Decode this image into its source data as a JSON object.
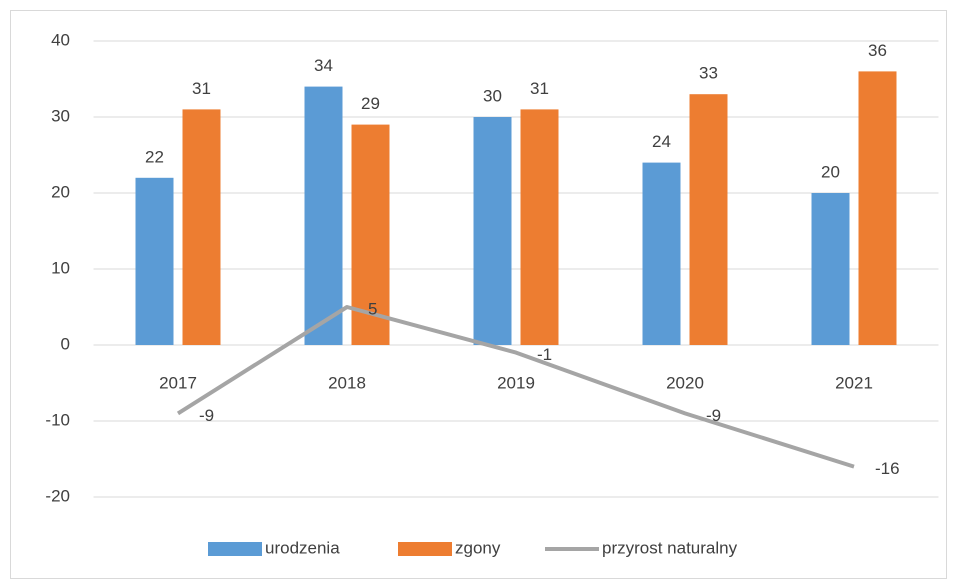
{
  "chart_data": {
    "type": "bar",
    "categories": [
      "2017",
      "2018",
      "2019",
      "2020",
      "2021"
    ],
    "series": [
      {
        "name": "urodzenia",
        "type": "bar",
        "color": "#5b9bd5",
        "values": [
          22,
          34,
          30,
          24,
          20
        ]
      },
      {
        "name": "zgony",
        "type": "bar",
        "color": "#ed7d31",
        "values": [
          31,
          29,
          31,
          33,
          36
        ]
      },
      {
        "name": "przyrost naturalny",
        "type": "line",
        "color": "#a5a5a5",
        "values": [
          -9,
          5,
          -1,
          -9,
          -16
        ]
      }
    ],
    "ylim": [
      -20,
      40
    ],
    "yticks": [
      -20,
      -10,
      0,
      10,
      20,
      30,
      40
    ],
    "grid": true,
    "legend": "bottom"
  }
}
